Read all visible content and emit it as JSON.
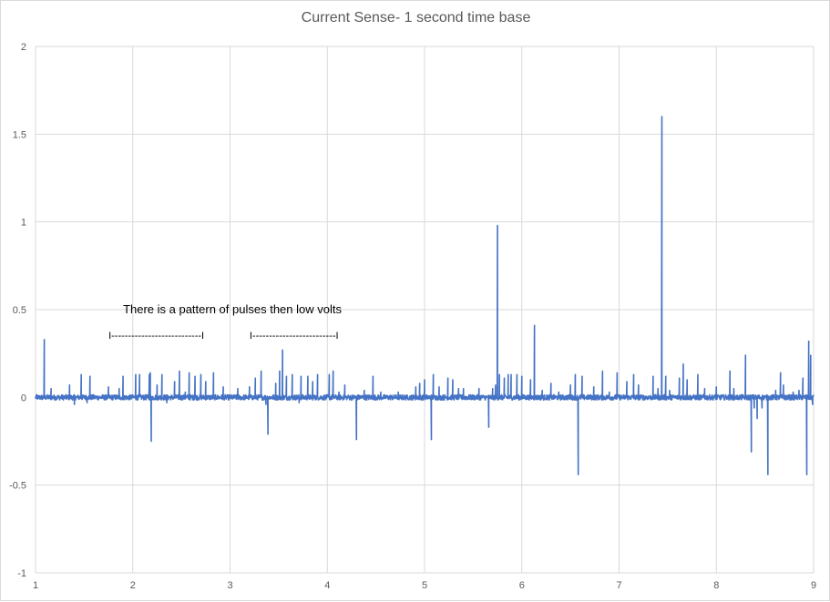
{
  "chart_data": {
    "type": "line",
    "title": "Current Sense- 1 second time base",
    "xlabel": "",
    "ylabel": "",
    "xlim": [
      1,
      9
    ],
    "ylim": [
      -1,
      2
    ],
    "xticks": [
      1,
      2,
      3,
      4,
      5,
      6,
      7,
      8,
      9
    ],
    "xtick_labels": [
      "1",
      "2",
      "3",
      "4",
      "5",
      "6",
      "7",
      "8",
      "9"
    ],
    "yticks": [
      -1,
      -0.5,
      0,
      0.5,
      1,
      1.5,
      2
    ],
    "ytick_labels": [
      "-1",
      "-0.5",
      "0",
      "0.5",
      "1",
      "1.5",
      "2"
    ],
    "grid": true,
    "legend": "none",
    "line_color": "#4472c4",
    "baseline_noise": 0.015,
    "series": [
      {
        "spikes": [
          [
            1.09,
            0.33
          ],
          [
            1.16,
            0.05
          ],
          [
            1.35,
            0.07
          ],
          [
            1.4,
            -0.04
          ],
          [
            1.47,
            0.13
          ],
          [
            1.53,
            -0.03
          ],
          [
            1.56,
            0.12
          ],
          [
            1.75,
            0.06
          ],
          [
            1.86,
            0.05
          ],
          [
            1.9,
            0.12
          ],
          [
            2.03,
            0.13
          ],
          [
            2.07,
            0.13
          ],
          [
            2.17,
            0.13
          ],
          [
            2.18,
            0.14
          ],
          [
            2.19,
            -0.25
          ],
          [
            2.25,
            0.07
          ],
          [
            2.3,
            0.13
          ],
          [
            2.35,
            -0.03
          ],
          [
            2.43,
            0.09
          ],
          [
            2.48,
            0.15
          ],
          [
            2.54,
            0.03
          ],
          [
            2.58,
            0.14
          ],
          [
            2.64,
            0.12
          ],
          [
            2.7,
            0.13
          ],
          [
            2.75,
            0.09
          ],
          [
            2.83,
            0.14
          ],
          [
            2.93,
            0.06
          ],
          [
            3.08,
            0.05
          ],
          [
            3.2,
            0.06
          ],
          [
            3.26,
            0.11
          ],
          [
            3.32,
            0.15
          ],
          [
            3.37,
            -0.04
          ],
          [
            3.39,
            -0.21
          ],
          [
            3.47,
            0.08
          ],
          [
            3.51,
            0.15
          ],
          [
            3.54,
            0.27
          ],
          [
            3.58,
            0.12
          ],
          [
            3.64,
            0.13
          ],
          [
            3.71,
            -0.03
          ],
          [
            3.73,
            0.12
          ],
          [
            3.8,
            0.12
          ],
          [
            3.85,
            0.09
          ],
          [
            3.9,
            0.13
          ],
          [
            4.02,
            0.13
          ],
          [
            4.06,
            0.15
          ],
          [
            4.12,
            0.03
          ],
          [
            4.18,
            0.07
          ],
          [
            4.3,
            -0.24
          ],
          [
            4.38,
            0.04
          ],
          [
            4.47,
            0.12
          ],
          [
            4.55,
            0.03
          ],
          [
            4.73,
            0.03
          ],
          [
            4.91,
            0.06
          ],
          [
            4.95,
            0.08
          ],
          [
            5.0,
            0.1
          ],
          [
            5.07,
            -0.24
          ],
          [
            5.09,
            0.13
          ],
          [
            5.15,
            0.06
          ],
          [
            5.24,
            0.11
          ],
          [
            5.29,
            0.1
          ],
          [
            5.35,
            0.05
          ],
          [
            5.4,
            0.05
          ],
          [
            5.56,
            0.05
          ],
          [
            5.66,
            -0.17
          ],
          [
            5.7,
            0.05
          ],
          [
            5.73,
            0.07
          ],
          [
            5.75,
            0.98
          ],
          [
            5.77,
            0.13
          ],
          [
            5.82,
            0.11
          ],
          [
            5.86,
            0.13
          ],
          [
            5.89,
            0.13
          ],
          [
            5.95,
            0.13
          ],
          [
            6.0,
            0.12
          ],
          [
            6.09,
            0.1
          ],
          [
            6.13,
            0.41
          ],
          [
            6.21,
            0.04
          ],
          [
            6.3,
            0.08
          ],
          [
            6.38,
            0.03
          ],
          [
            6.5,
            0.07
          ],
          [
            6.55,
            0.13
          ],
          [
            6.58,
            -0.44
          ],
          [
            6.62,
            0.12
          ],
          [
            6.74,
            0.06
          ],
          [
            6.83,
            0.15
          ],
          [
            6.9,
            0.03
          ],
          [
            6.98,
            0.14
          ],
          [
            7.08,
            0.09
          ],
          [
            7.15,
            0.13
          ],
          [
            7.2,
            0.07
          ],
          [
            7.35,
            0.12
          ],
          [
            7.4,
            0.05
          ],
          [
            7.44,
            1.6
          ],
          [
            7.48,
            0.12
          ],
          [
            7.52,
            0.04
          ],
          [
            7.62,
            0.11
          ],
          [
            7.66,
            0.19
          ],
          [
            7.7,
            0.1
          ],
          [
            7.81,
            0.13
          ],
          [
            7.88,
            0.05
          ],
          [
            8.0,
            0.06
          ],
          [
            8.14,
            0.15
          ],
          [
            8.18,
            0.05
          ],
          [
            8.3,
            0.24
          ],
          [
            8.36,
            -0.31
          ],
          [
            8.39,
            -0.06
          ],
          [
            8.42,
            -0.12
          ],
          [
            8.47,
            -0.06
          ],
          [
            8.53,
            -0.44
          ],
          [
            8.61,
            0.04
          ],
          [
            8.66,
            0.14
          ],
          [
            8.69,
            0.07
          ],
          [
            8.79,
            0.03
          ],
          [
            8.85,
            0.04
          ],
          [
            8.89,
            0.11
          ],
          [
            8.93,
            -0.44
          ],
          [
            8.95,
            0.32
          ],
          [
            8.97,
            0.24
          ],
          [
            8.99,
            -0.04
          ]
        ]
      }
    ],
    "annotations": [
      {
        "text": "There is a  pattern of pulses then low volts",
        "x": 1.9,
        "y": 0.5
      },
      {
        "text": "I---------------------------I",
        "x": 1.75,
        "y": 0.355
      },
      {
        "text": "I-------------------------I",
        "x": 3.2,
        "y": 0.355
      }
    ]
  }
}
